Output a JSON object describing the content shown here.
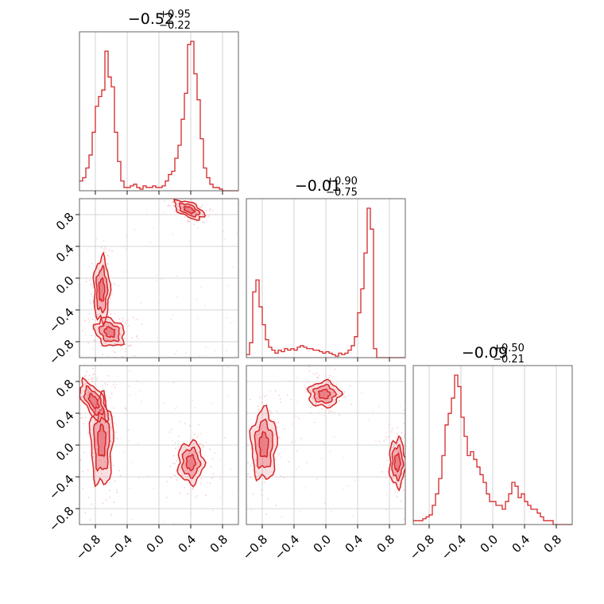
{
  "chart_data": {
    "type": "corner",
    "colors": {
      "line": "#d62728",
      "fill": "#e8727a",
      "scatter": "#f2b8bd"
    },
    "parameters": [
      {
        "title_main": "−0.52",
        "title_plus": "+0.95",
        "title_minus": "−0.22"
      },
      {
        "title_main": "−0.01",
        "title_plus": "+0.90",
        "title_minus": "−0.75"
      },
      {
        "title_main": "−0.09",
        "title_plus": "+0.50",
        "title_minus": "−0.21"
      }
    ],
    "axis_range": [
      -1.0,
      1.0
    ],
    "ticks": [
      -0.8,
      -0.4,
      0.0,
      0.4,
      0.8
    ],
    "tick_labels": [
      "−0.8",
      "−0.4",
      "0.0",
      "0.4",
      "0.8"
    ],
    "grid": true,
    "histograms": [
      {
        "param": 0,
        "bins_start": -1.0,
        "bin_width": 0.04,
        "counts": [
          0.06,
          0.08,
          0.14,
          0.22,
          0.36,
          0.52,
          0.58,
          0.62,
          0.86,
          0.7,
          0.64,
          0.36,
          0.18,
          0.06,
          0.02,
          0.02,
          0.03,
          0.04,
          0.02,
          0.01,
          0.03,
          0.02,
          0.02,
          0.03,
          0.02,
          0.02,
          0.03,
          0.06,
          0.1,
          0.12,
          0.2,
          0.28,
          0.44,
          0.6,
          0.9,
          0.92,
          0.72,
          0.56,
          0.32,
          0.14,
          0.08,
          0.04,
          0.02,
          0.02,
          0.01,
          0.0,
          0.0,
          0.0,
          0.0,
          0.0
        ]
      },
      {
        "param": 1,
        "bins_start": -1.0,
        "bin_width": 0.04,
        "counts": [
          0.02,
          0.1,
          0.44,
          0.52,
          0.34,
          0.22,
          0.12,
          0.07,
          0.05,
          0.03,
          0.05,
          0.04,
          0.06,
          0.05,
          0.06,
          0.05,
          0.07,
          0.08,
          0.07,
          0.06,
          0.06,
          0.05,
          0.05,
          0.04,
          0.03,
          0.04,
          0.03,
          0.02,
          0.01,
          0.03,
          0.02,
          0.03,
          0.05,
          0.08,
          0.14,
          0.3,
          0.46,
          0.7,
          1.0,
          0.86,
          0.06,
          0.0,
          0.0,
          0.0,
          0.0,
          0.0,
          0.0,
          0.0,
          0.0,
          0.0
        ]
      },
      {
        "param": 2,
        "bins_start": -1.0,
        "bin_width": 0.04,
        "counts": [
          0.02,
          0.02,
          0.02,
          0.03,
          0.04,
          0.05,
          0.1,
          0.16,
          0.24,
          0.36,
          0.52,
          0.58,
          0.66,
          0.78,
          0.72,
          0.56,
          0.46,
          0.36,
          0.38,
          0.34,
          0.3,
          0.26,
          0.22,
          0.16,
          0.12,
          0.12,
          0.1,
          0.1,
          0.08,
          0.12,
          0.16,
          0.22,
          0.2,
          0.14,
          0.16,
          0.12,
          0.1,
          0.08,
          0.08,
          0.06,
          0.04,
          0.02,
          0.02,
          0.02,
          0.0,
          0.0,
          0.0,
          0.0,
          0.0,
          0.0
        ]
      }
    ],
    "density_modes": [
      {
        "pair": [
          0,
          1
        ],
        "modes": [
          {
            "x": 0.38,
            "y": 0.86,
            "sx": 0.1,
            "sy": 0.045,
            "rot": -25
          },
          {
            "x": -0.72,
            "y": -0.15,
            "sx": 0.05,
            "sy": 0.2,
            "rot": 0
          },
          {
            "x": -0.62,
            "y": -0.68,
            "sx": 0.1,
            "sy": 0.08,
            "rot": -40
          }
        ]
      },
      {
        "pair": [
          0,
          2
        ],
        "modes": [
          {
            "x": -0.72,
            "y": 0.05,
            "sx": 0.07,
            "sy": 0.28,
            "rot": 0
          },
          {
            "x": -0.82,
            "y": 0.55,
            "sx": 0.06,
            "sy": 0.14,
            "rot": 30
          },
          {
            "x": 0.4,
            "y": -0.22,
            "sx": 0.08,
            "sy": 0.13,
            "rot": 0
          }
        ]
      },
      {
        "pair": [
          1,
          2
        ],
        "modes": [
          {
            "x": -0.78,
            "y": 0.0,
            "sx": 0.08,
            "sy": 0.22,
            "rot": 0
          },
          {
            "x": -0.02,
            "y": 0.64,
            "sx": 0.1,
            "sy": 0.08,
            "rot": 0
          },
          {
            "x": 0.9,
            "y": -0.22,
            "sx": 0.05,
            "sy": 0.15,
            "rot": 0
          }
        ]
      }
    ]
  }
}
